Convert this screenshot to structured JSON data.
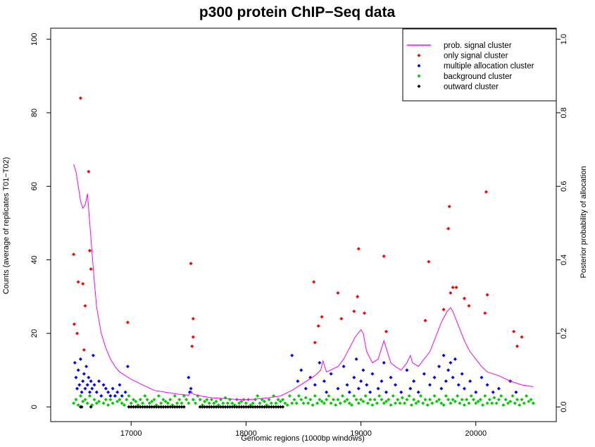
{
  "chart_data": {
    "type": "scatter",
    "title": "p300 protein ChIP−Seq data",
    "xlabel": "Genomic regions (1000bp windows)",
    "ylabel": "Counts (average of replicates T01−T02)",
    "y2label": "Posterior probability of allocation",
    "xlim": [
      16300,
      20700
    ],
    "ylim": [
      -4,
      103
    ],
    "y2lim": [
      -0.04,
      1.03
    ],
    "xticks": [
      17000,
      18000,
      19000,
      20000
    ],
    "xtick_labels": [
      "17000",
      "18000",
      "19000",
      "20000"
    ],
    "yticks": [
      0,
      20,
      40,
      60,
      80,
      100
    ],
    "ytick_labels": [
      "0",
      "20",
      "40",
      "60",
      "80",
      "100"
    ],
    "y2ticks": [
      0.0,
      0.2,
      0.4,
      0.6,
      0.8,
      1.0
    ],
    "y2tick_labels": [
      "0.0",
      "0.2",
      "0.4",
      "0.6",
      "0.8",
      "1.0"
    ],
    "legend_position": "top-right",
    "legend": [
      {
        "label": "prob. signal cluster",
        "kind": "line",
        "color": "#ff00ff"
      },
      {
        "label": "only signal cluster",
        "kind": "point",
        "color": "#ff0000"
      },
      {
        "label": "multiple allocation cluster",
        "kind": "point",
        "color": "#0000ff"
      },
      {
        "label": "background cluster",
        "kind": "point",
        "color": "#00cc00"
      },
      {
        "label": "outward cluster",
        "kind": "point",
        "color": "#000000"
      }
    ],
    "series": [
      {
        "name": "prob. signal cluster",
        "axis": "right",
        "kind": "line",
        "color": "#ff00ff",
        "x": [
          16500,
          16520,
          16540,
          16560,
          16580,
          16600,
          16620,
          16640,
          16660,
          16680,
          16700,
          16740,
          16780,
          16820,
          16860,
          16900,
          16950,
          17000,
          17100,
          17200,
          17300,
          17400,
          17500,
          17520,
          17540,
          17600,
          17700,
          17800,
          17900,
          18000,
          18100,
          18200,
          18300,
          18400,
          18500,
          18600,
          18650,
          18670,
          18700,
          18800,
          18850,
          18900,
          18950,
          19000,
          19020,
          19050,
          19100,
          19150,
          19200,
          19220,
          19260,
          19300,
          19350,
          19400,
          19430,
          19450,
          19500,
          19550,
          19600,
          19650,
          19700,
          19750,
          19780,
          19800,
          19850,
          19900,
          19950,
          20000,
          20050,
          20100,
          20200,
          20300,
          20400,
          20500
        ],
        "y": [
          0.66,
          0.64,
          0.6,
          0.56,
          0.54,
          0.55,
          0.58,
          0.5,
          0.42,
          0.34,
          0.27,
          0.2,
          0.16,
          0.13,
          0.11,
          0.095,
          0.085,
          0.075,
          0.06,
          0.045,
          0.04,
          0.035,
          0.032,
          0.04,
          0.035,
          0.03,
          0.025,
          0.023,
          0.021,
          0.02,
          0.022,
          0.025,
          0.03,
          0.045,
          0.065,
          0.085,
          0.1,
          0.125,
          0.095,
          0.11,
          0.13,
          0.16,
          0.19,
          0.21,
          0.2,
          0.15,
          0.12,
          0.13,
          0.18,
          0.16,
          0.12,
          0.11,
          0.1,
          0.12,
          0.14,
          0.12,
          0.11,
          0.13,
          0.15,
          0.19,
          0.23,
          0.26,
          0.27,
          0.26,
          0.22,
          0.18,
          0.15,
          0.13,
          0.11,
          0.095,
          0.085,
          0.07,
          0.06,
          0.055
        ]
      },
      {
        "name": "only signal cluster",
        "axis": "left",
        "kind": "point",
        "color": "#ff0000",
        "x": [
          16500,
          16505,
          16530,
          16540,
          16560,
          16580,
          16590,
          16600,
          16630,
          16640,
          16650,
          16970,
          17520,
          17530,
          17540,
          17540,
          18590,
          18600,
          18630,
          18660,
          18800,
          18830,
          18940,
          18970,
          18980,
          19030,
          19200,
          19220,
          19560,
          19590,
          19720,
          19760,
          19770,
          19780,
          19800,
          19830,
          19900,
          19940,
          20080,
          20090,
          20100,
          20330,
          20360,
          20400
        ],
        "y": [
          41.5,
          22.5,
          20,
          34,
          84,
          33.5,
          15.5,
          27.5,
          64,
          42.5,
          37.5,
          23,
          39,
          16.5,
          24,
          19,
          34,
          17.5,
          22,
          24.5,
          31,
          24,
          26,
          30,
          43,
          25.5,
          41,
          20.5,
          23.5,
          39.5,
          26.5,
          48.5,
          54.5,
          31,
          32.5,
          32.5,
          29.5,
          27.5,
          25.5,
          58.5,
          30.5,
          20.5,
          16.5,
          19
        ]
      },
      {
        "name": "multiple allocation cluster",
        "axis": "left",
        "kind": "point",
        "color": "#0000ff",
        "x": [
          16510,
          16520,
          16530,
          16540,
          16550,
          16560,
          16570,
          16580,
          16590,
          16600,
          16610,
          16620,
          16630,
          16640,
          16650,
          16660,
          16670,
          16680,
          16700,
          16720,
          16740,
          16760,
          16780,
          16800,
          16820,
          16840,
          16860,
          16880,
          16900,
          16920,
          16950,
          16970,
          17500,
          17510,
          17520,
          18400,
          18450,
          18480,
          18520,
          18560,
          18600,
          18640,
          18680,
          18700,
          18740,
          18800,
          18850,
          18880,
          18900,
          18940,
          18960,
          18980,
          19000,
          19020,
          19050,
          19080,
          19100,
          19150,
          19180,
          19200,
          19220,
          19260,
          19300,
          19350,
          19400,
          19430,
          19460,
          19500,
          19550,
          19600,
          19640,
          19680,
          19700,
          19720,
          19740,
          19760,
          19780,
          19800,
          19820,
          19850,
          19880,
          19900,
          19950,
          20000,
          20050,
          20100,
          20150,
          20200,
          20300,
          20350
        ],
        "y": [
          12,
          8,
          5,
          10,
          6,
          13,
          4,
          7,
          9,
          5,
          11,
          6,
          8,
          4,
          7,
          5,
          14,
          6,
          4,
          7,
          3,
          6,
          5,
          4,
          3,
          5,
          3,
          4,
          6,
          3,
          4,
          11,
          8,
          4,
          5,
          14,
          7,
          10,
          5,
          8,
          6,
          12,
          7,
          4,
          9,
          5,
          11,
          6,
          4,
          8,
          13,
          5,
          7,
          10,
          6,
          4,
          9,
          5,
          7,
          12,
          4,
          8,
          6,
          4,
          10,
          5,
          7,
          4,
          9,
          6,
          8,
          11,
          5,
          14,
          7,
          10,
          12,
          8,
          13,
          6,
          9,
          5,
          7,
          4,
          8,
          6,
          4,
          5,
          7,
          4
        ]
      },
      {
        "name": "background cluster",
        "axis": "left",
        "kind": "point",
        "color": "#00cc00",
        "x": [
          16500,
          16520,
          16540,
          16560,
          16580,
          16600,
          16620,
          16640,
          16660,
          16680,
          16700,
          16720,
          16740,
          16760,
          16780,
          16800,
          16820,
          16840,
          16860,
          16880,
          16900,
          16920,
          16940,
          16960,
          16980,
          17000,
          17020,
          17040,
          17060,
          17080,
          17100,
          17120,
          17140,
          17160,
          17180,
          17200,
          17220,
          17240,
          17260,
          17280,
          17300,
          17320,
          17340,
          17360,
          17380,
          17400,
          17420,
          17440,
          17460,
          17480,
          17500,
          17520,
          17540,
          17560,
          17580,
          17600,
          17620,
          17640,
          17660,
          17680,
          17700,
          17720,
          17740,
          17760,
          17780,
          17800,
          17820,
          17840,
          17860,
          17880,
          17900,
          17920,
          17940,
          17960,
          17980,
          18000,
          18020,
          18040,
          18060,
          18080,
          18100,
          18120,
          18140,
          18160,
          18180,
          18200,
          18220,
          18240,
          18260,
          18280,
          18300,
          18320,
          18340,
          18360,
          18380,
          18400,
          18420,
          18440,
          18460,
          18480,
          18500,
          18520,
          18540,
          18560,
          18580,
          18600,
          18620,
          18640,
          18660,
          18680,
          18700,
          18720,
          18740,
          18760,
          18780,
          18800,
          18820,
          18840,
          18860,
          18880,
          18900,
          18920,
          18940,
          18960,
          18980,
          19000,
          19020,
          19040,
          19060,
          19080,
          19100,
          19120,
          19140,
          19160,
          19180,
          19200,
          19220,
          19240,
          19260,
          19280,
          19300,
          19320,
          19340,
          19360,
          19380,
          19400,
          19420,
          19440,
          19460,
          19480,
          19500,
          19520,
          19540,
          19560,
          19580,
          19600,
          19620,
          19640,
          19660,
          19680,
          19700,
          19720,
          19740,
          19760,
          19780,
          19800,
          19820,
          19840,
          19860,
          19880,
          19900,
          19920,
          19940,
          19960,
          19980,
          20000,
          20020,
          20040,
          20060,
          20080,
          20100,
          20120,
          20140,
          20160,
          20180,
          20200,
          20220,
          20240,
          20260,
          20280,
          20300,
          20320,
          20340,
          20360,
          20380,
          20400,
          20420,
          20440,
          20460,
          20480,
          20500
        ],
        "y": [
          1,
          2,
          0.5,
          3,
          1.5,
          2,
          1,
          3,
          0.5,
          2,
          1,
          1.5,
          3,
          1,
          2,
          0.5,
          2,
          1,
          3,
          1.5,
          2,
          1,
          0.5,
          2,
          3,
          1,
          2,
          1.5,
          0.5,
          2,
          1,
          3,
          2,
          1,
          1.5,
          2,
          0.5,
          3,
          1,
          2,
          1.5,
          1,
          2,
          0.5,
          3,
          1,
          2,
          1,
          3,
          2,
          1,
          4,
          2,
          1,
          3,
          2,
          0.5,
          1.5,
          2,
          1,
          2,
          1,
          1.5,
          0.5,
          2,
          1,
          2.5,
          1,
          2,
          1,
          0.5,
          2,
          1,
          1.5,
          2,
          1,
          2,
          0.5,
          1,
          2,
          3,
          1,
          2,
          1.5,
          0.5,
          2,
          1,
          3,
          1,
          2,
          1.5,
          2,
          1,
          0.5,
          3,
          1,
          2,
          1,
          3,
          2,
          1,
          2.5,
          1,
          2,
          0.5,
          3,
          1,
          2,
          1.5,
          1,
          2,
          3,
          1,
          2,
          0.5,
          2,
          1,
          3,
          1.5,
          2,
          1,
          0.5,
          3,
          2,
          1,
          2,
          1.5,
          3,
          1,
          2,
          0.5,
          2,
          1,
          3,
          2,
          1,
          1.5,
          2,
          0.5,
          3,
          1,
          2,
          1,
          2.5,
          1,
          2,
          3,
          0.5,
          2,
          1,
          1.5,
          3,
          1,
          2,
          0.5,
          2,
          1,
          3,
          1.5,
          2,
          1,
          0.5,
          3,
          2,
          1,
          2,
          1.5,
          3,
          1,
          2,
          0.5,
          2,
          1,
          3,
          2,
          1,
          1.5,
          2,
          0.5,
          3,
          1,
          2,
          1,
          2.5,
          1,
          2,
          3,
          0.5,
          2,
          1,
          1.5,
          3,
          1,
          2,
          0.5,
          2,
          1,
          3,
          1.5,
          2,
          1
        ]
      },
      {
        "name": "outward cluster",
        "axis": "left",
        "kind": "point",
        "color": "#000000",
        "x": [
          16560,
          16570,
          16650,
          16980,
          17000,
          17020,
          17040,
          17060,
          17080,
          17100,
          17120,
          17140,
          17160,
          17180,
          17200,
          17220,
          17240,
          17260,
          17280,
          17300,
          17320,
          17340,
          17360,
          17380,
          17400,
          17420,
          17440,
          17460,
          17600,
          17620,
          17640,
          17660,
          17680,
          17700,
          17720,
          17740,
          17760,
          17780,
          17800,
          17820,
          17840,
          17860,
          17880,
          17900,
          17920,
          17940,
          17960,
          17980,
          18000,
          18020,
          18040,
          18060,
          18080,
          18100,
          18120,
          18140,
          18160,
          18180,
          18200,
          18220,
          18240,
          18260,
          18280,
          18300,
          18320
        ],
        "y": [
          0,
          0,
          0,
          0,
          0,
          0,
          0,
          0,
          0,
          0,
          0,
          0,
          0,
          0,
          0,
          0,
          0,
          0,
          0,
          0,
          0,
          0,
          0,
          0,
          0,
          0,
          0,
          0,
          0,
          0,
          0,
          0,
          0,
          0,
          0,
          0,
          0,
          0,
          0,
          0,
          0,
          0,
          0,
          0,
          0,
          0,
          0,
          0,
          0,
          0,
          0,
          0,
          0,
          0,
          0,
          0,
          0,
          0,
          0,
          0,
          0,
          0,
          0,
          0,
          0
        ]
      }
    ]
  }
}
